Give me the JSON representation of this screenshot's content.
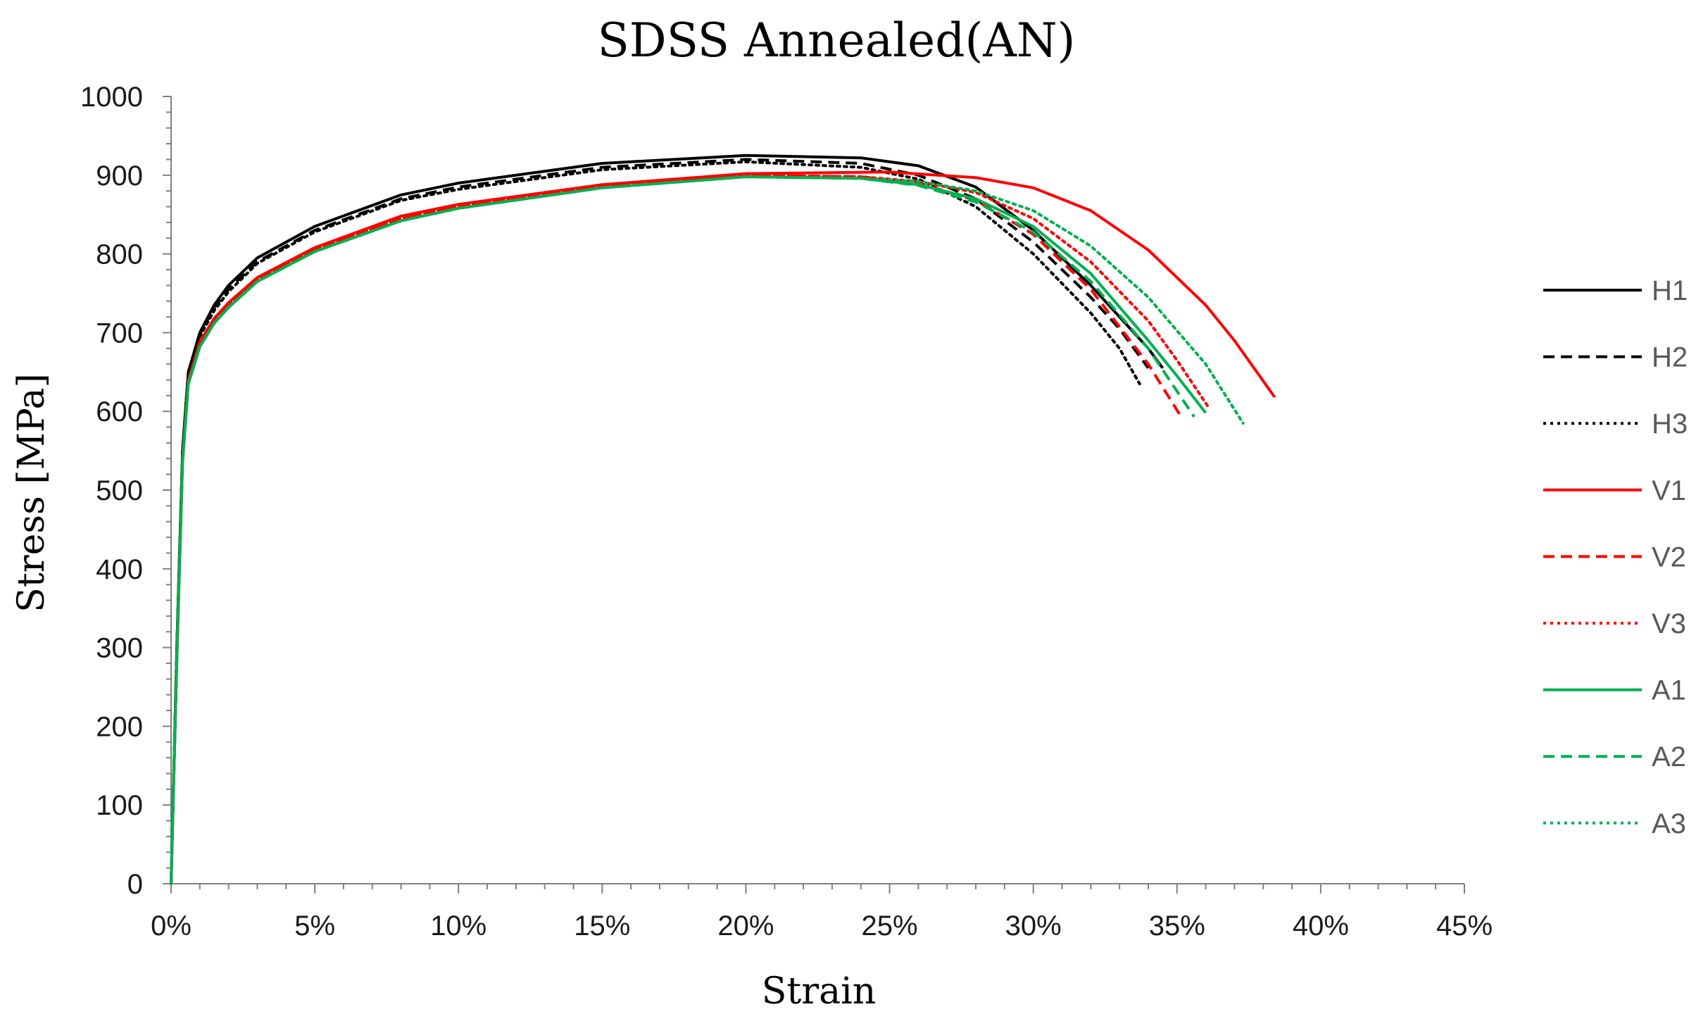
{
  "chart_data": {
    "type": "line",
    "title": "SDSS Annealed(AN)",
    "xlabel": "Strain",
    "ylabel": "Stress [MPa]",
    "xlim": [
      0,
      0.45
    ],
    "ylim": [
      0,
      1000
    ],
    "x_ticks": [
      "0%",
      "5%",
      "10%",
      "15%",
      "20%",
      "25%",
      "30%",
      "35%",
      "40%",
      "45%"
    ],
    "y_ticks": [
      "0",
      "100",
      "200",
      "300",
      "400",
      "500",
      "600",
      "700",
      "800",
      "900",
      "1000"
    ],
    "x_tick_values": [
      0,
      0.05,
      0.1,
      0.15,
      0.2,
      0.25,
      0.3,
      0.35,
      0.4,
      0.45
    ],
    "y_tick_values": [
      0,
      100,
      200,
      300,
      400,
      500,
      600,
      700,
      800,
      900,
      1000
    ],
    "grid": false,
    "legend_position": "right",
    "series": [
      {
        "name": "H1",
        "color": "#000000",
        "dash": "solid",
        "x": [
          0,
          0.002,
          0.004,
          0.006,
          0.01,
          0.015,
          0.02,
          0.03,
          0.05,
          0.08,
          0.1,
          0.15,
          0.2,
          0.24,
          0.26,
          0.28,
          0.3,
          0.32,
          0.33,
          0.34,
          0.345
        ],
        "y": [
          0,
          300,
          550,
          650,
          700,
          735,
          760,
          795,
          835,
          875,
          890,
          915,
          925,
          922,
          912,
          885,
          830,
          760,
          720,
          680,
          655
        ]
      },
      {
        "name": "H2",
        "color": "#000000",
        "dash": "dashed",
        "x": [
          0,
          0.002,
          0.004,
          0.006,
          0.01,
          0.015,
          0.02,
          0.03,
          0.05,
          0.08,
          0.1,
          0.15,
          0.2,
          0.24,
          0.26,
          0.28,
          0.3,
          0.32,
          0.33,
          0.34
        ],
        "y": [
          0,
          300,
          550,
          650,
          698,
          732,
          755,
          790,
          830,
          870,
          885,
          910,
          920,
          915,
          900,
          870,
          815,
          745,
          705,
          655
        ]
      },
      {
        "name": "H3",
        "color": "#000000",
        "dash": "dotted",
        "x": [
          0,
          0.002,
          0.004,
          0.006,
          0.01,
          0.015,
          0.02,
          0.03,
          0.05,
          0.08,
          0.1,
          0.15,
          0.2,
          0.24,
          0.26,
          0.28,
          0.3,
          0.32,
          0.33,
          0.337
        ],
        "y": [
          0,
          300,
          550,
          650,
          695,
          728,
          752,
          788,
          828,
          868,
          882,
          907,
          917,
          910,
          895,
          860,
          800,
          725,
          680,
          635
        ]
      },
      {
        "name": "V1",
        "color": "#ff0000",
        "dash": "solid",
        "x": [
          0,
          0.002,
          0.004,
          0.006,
          0.01,
          0.015,
          0.02,
          0.03,
          0.05,
          0.08,
          0.1,
          0.15,
          0.2,
          0.25,
          0.28,
          0.3,
          0.32,
          0.34,
          0.36,
          0.37,
          0.384
        ],
        "y": [
          0,
          290,
          540,
          640,
          688,
          718,
          738,
          770,
          808,
          848,
          863,
          888,
          902,
          904,
          897,
          884,
          855,
          805,
          735,
          690,
          618
        ]
      },
      {
        "name": "V2",
        "color": "#ff0000",
        "dash": "dashed",
        "x": [
          0,
          0.002,
          0.004,
          0.006,
          0.01,
          0.015,
          0.02,
          0.03,
          0.05,
          0.08,
          0.1,
          0.15,
          0.2,
          0.24,
          0.26,
          0.28,
          0.3,
          0.32,
          0.34,
          0.352
        ],
        "y": [
          0,
          290,
          540,
          640,
          686,
          716,
          735,
          768,
          806,
          845,
          860,
          886,
          900,
          898,
          890,
          868,
          825,
          755,
          660,
          590
        ]
      },
      {
        "name": "V3",
        "color": "#ff0000",
        "dash": "dotted",
        "x": [
          0,
          0.002,
          0.004,
          0.006,
          0.01,
          0.015,
          0.02,
          0.03,
          0.05,
          0.08,
          0.1,
          0.15,
          0.2,
          0.24,
          0.26,
          0.28,
          0.3,
          0.32,
          0.34,
          0.35,
          0.361
        ],
        "y": [
          0,
          290,
          540,
          640,
          686,
          716,
          735,
          768,
          806,
          845,
          860,
          886,
          900,
          898,
          892,
          878,
          845,
          790,
          715,
          665,
          605
        ]
      },
      {
        "name": "A1",
        "color": "#00b050",
        "dash": "solid",
        "x": [
          0,
          0.002,
          0.004,
          0.006,
          0.01,
          0.015,
          0.02,
          0.03,
          0.05,
          0.08,
          0.1,
          0.15,
          0.2,
          0.24,
          0.26,
          0.28,
          0.3,
          0.32,
          0.34,
          0.35,
          0.36
        ],
        "y": [
          0,
          285,
          535,
          635,
          682,
          712,
          732,
          765,
          803,
          842,
          858,
          884,
          898,
          896,
          888,
          870,
          835,
          775,
          690,
          645,
          598
        ]
      },
      {
        "name": "A2",
        "color": "#00b050",
        "dash": "dashed",
        "x": [
          0,
          0.002,
          0.004,
          0.006,
          0.01,
          0.015,
          0.02,
          0.03,
          0.05,
          0.08,
          0.1,
          0.15,
          0.2,
          0.24,
          0.26,
          0.28,
          0.3,
          0.32,
          0.34,
          0.356
        ],
        "y": [
          0,
          285,
          535,
          635,
          682,
          712,
          732,
          765,
          803,
          842,
          858,
          884,
          898,
          896,
          887,
          866,
          828,
          765,
          680,
          593
        ]
      },
      {
        "name": "A3",
        "color": "#00b050",
        "dash": "dotted",
        "x": [
          0,
          0.002,
          0.004,
          0.006,
          0.01,
          0.015,
          0.02,
          0.03,
          0.05,
          0.08,
          0.1,
          0.15,
          0.2,
          0.24,
          0.26,
          0.28,
          0.3,
          0.32,
          0.34,
          0.36,
          0.373
        ],
        "y": [
          0,
          285,
          535,
          635,
          682,
          712,
          732,
          765,
          803,
          842,
          858,
          884,
          898,
          896,
          892,
          880,
          855,
          810,
          745,
          660,
          585
        ]
      }
    ]
  }
}
